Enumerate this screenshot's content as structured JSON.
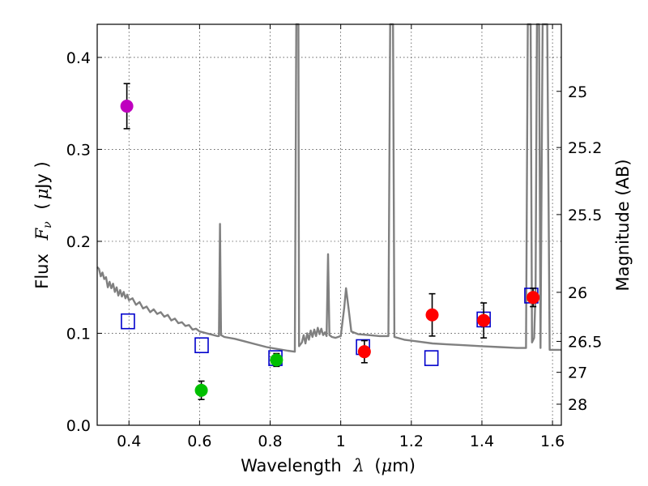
{
  "chart_data": {
    "type": "scatter",
    "xlabel": "Wavelength",
    "xlabel_symbol": "λ",
    "xlabel_unit_open": "(",
    "xlabel_unit_mu": "μ",
    "xlabel_unit_rest": "m)",
    "ylabel": "Flux",
    "ylabel_symbol": "F",
    "ylabel_subscript": "ν",
    "ylabel_unit_open": "(",
    "ylabel_unit_mu": "μ",
    "ylabel_unit_rest": "Jy )",
    "y2label": "Magnitude (AB)",
    "xlim": [
      0.31,
      1.625
    ],
    "ylim": [
      0.0,
      0.436
    ],
    "grid": true,
    "x_ticks": [
      {
        "value": 0.4,
        "label": "0.4"
      },
      {
        "value": 0.6,
        "label": "0.6"
      },
      {
        "value": 0.8,
        "label": "0.8"
      },
      {
        "value": 1.0,
        "label": "1"
      },
      {
        "value": 1.2,
        "label": "1.2"
      },
      {
        "value": 1.4,
        "label": "1.4"
      },
      {
        "value": 1.6,
        "label": "1.6"
      }
    ],
    "y_ticks": [
      {
        "value": 0.0,
        "label": "0.0"
      },
      {
        "value": 0.1,
        "label": "0.1"
      },
      {
        "value": 0.2,
        "label": "0.2"
      },
      {
        "value": 0.3,
        "label": "0.3"
      },
      {
        "value": 0.4,
        "label": "0.4"
      }
    ],
    "magnitude_ticks": [
      {
        "mag": 25,
        "label": "25"
      },
      {
        "mag": 25.2,
        "label": "25.2"
      },
      {
        "mag": 25.5,
        "label": "25.5"
      },
      {
        "mag": 26,
        "label": "26"
      },
      {
        "mag": 26.5,
        "label": "26.5"
      },
      {
        "mag": 27,
        "label": "27"
      },
      {
        "mag": 28,
        "label": "28"
      }
    ],
    "series": [
      {
        "name": "model_sed",
        "kind": "line",
        "color": "#808080",
        "points": [
          [
            0.31,
            0.172
          ],
          [
            0.315,
            0.17
          ],
          [
            0.32,
            0.162
          ],
          [
            0.325,
            0.166
          ],
          [
            0.33,
            0.159
          ],
          [
            0.335,
            0.161
          ],
          [
            0.34,
            0.15
          ],
          [
            0.345,
            0.156
          ],
          [
            0.35,
            0.149
          ],
          [
            0.355,
            0.154
          ],
          [
            0.36,
            0.145
          ],
          [
            0.365,
            0.15
          ],
          [
            0.37,
            0.141
          ],
          [
            0.375,
            0.147
          ],
          [
            0.38,
            0.14
          ],
          [
            0.385,
            0.145
          ],
          [
            0.39,
            0.138
          ],
          [
            0.395,
            0.142
          ],
          [
            0.4,
            0.136
          ],
          [
            0.41,
            0.138
          ],
          [
            0.42,
            0.131
          ],
          [
            0.43,
            0.134
          ],
          [
            0.44,
            0.127
          ],
          [
            0.45,
            0.129
          ],
          [
            0.46,
            0.123
          ],
          [
            0.47,
            0.126
          ],
          [
            0.48,
            0.121
          ],
          [
            0.49,
            0.123
          ],
          [
            0.5,
            0.118
          ],
          [
            0.51,
            0.12
          ],
          [
            0.52,
            0.114
          ],
          [
            0.53,
            0.116
          ],
          [
            0.54,
            0.111
          ],
          [
            0.55,
            0.112
          ],
          [
            0.56,
            0.108
          ],
          [
            0.57,
            0.109
          ],
          [
            0.58,
            0.104
          ],
          [
            0.59,
            0.105
          ],
          [
            0.6,
            0.102
          ],
          [
            0.61,
            0.101
          ],
          [
            0.62,
            0.1
          ],
          [
            0.63,
            0.099
          ],
          [
            0.64,
            0.098
          ],
          [
            0.65,
            0.097
          ],
          [
            0.655,
            0.097
          ],
          [
            0.658,
            0.219
          ],
          [
            0.661,
            0.098
          ],
          [
            0.67,
            0.096
          ],
          [
            0.7,
            0.094
          ],
          [
            0.73,
            0.091
          ],
          [
            0.76,
            0.088
          ],
          [
            0.79,
            0.085
          ],
          [
            0.82,
            0.083
          ],
          [
            0.85,
            0.081
          ],
          [
            0.87,
            0.08
          ],
          [
            0.874,
            0.436
          ],
          [
            0.88,
            0.436
          ],
          [
            0.882,
            0.086
          ],
          [
            0.89,
            0.09
          ],
          [
            0.895,
            0.098
          ],
          [
            0.9,
            0.089
          ],
          [
            0.905,
            0.1
          ],
          [
            0.91,
            0.093
          ],
          [
            0.915,
            0.103
          ],
          [
            0.92,
            0.096
          ],
          [
            0.925,
            0.104
          ],
          [
            0.93,
            0.097
          ],
          [
            0.935,
            0.106
          ],
          [
            0.94,
            0.099
          ],
          [
            0.945,
            0.105
          ],
          [
            0.95,
            0.098
          ],
          [
            0.955,
            0.101
          ],
          [
            0.96,
            0.097
          ],
          [
            0.964,
            0.186
          ],
          [
            0.968,
            0.098
          ],
          [
            0.975,
            0.096
          ],
          [
            0.985,
            0.095
          ],
          [
            1.0,
            0.097
          ],
          [
            1.01,
            0.128
          ],
          [
            1.015,
            0.149
          ],
          [
            1.022,
            0.128
          ],
          [
            1.03,
            0.102
          ],
          [
            1.05,
            0.099
          ],
          [
            1.08,
            0.098
          ],
          [
            1.11,
            0.097
          ],
          [
            1.135,
            0.097
          ],
          [
            1.14,
            0.436
          ],
          [
            1.148,
            0.436
          ],
          [
            1.152,
            0.096
          ],
          [
            1.18,
            0.093
          ],
          [
            1.22,
            0.091
          ],
          [
            1.26,
            0.089
          ],
          [
            1.3,
            0.088
          ],
          [
            1.35,
            0.087
          ],
          [
            1.4,
            0.086
          ],
          [
            1.45,
            0.085
          ],
          [
            1.5,
            0.084
          ],
          [
            1.525,
            0.084
          ],
          [
            1.53,
            0.436
          ],
          [
            1.538,
            0.436
          ],
          [
            1.542,
            0.09
          ],
          [
            1.548,
            0.095
          ],
          [
            1.552,
            0.145
          ],
          [
            1.556,
            0.436
          ],
          [
            1.562,
            0.436
          ],
          [
            1.566,
            0.084
          ],
          [
            1.572,
            0.436
          ],
          [
            1.585,
            0.436
          ],
          [
            1.592,
            0.082
          ],
          [
            1.6,
            0.082
          ],
          [
            1.625,
            0.082
          ]
        ]
      },
      {
        "name": "model_photometry",
        "kind": "square",
        "color": "#0000cc",
        "points": [
          [
            0.397,
            0.113
          ],
          [
            0.606,
            0.087
          ],
          [
            0.815,
            0.073
          ],
          [
            1.063,
            0.085
          ],
          [
            1.257,
            0.073
          ],
          [
            1.405,
            0.115
          ],
          [
            1.54,
            0.141
          ]
        ]
      },
      {
        "name": "observed_uv",
        "kind": "circle",
        "color": "#bf00bf",
        "points": [
          [
            0.394,
            0.347,
            0.0245
          ]
        ]
      },
      {
        "name": "observed_optical",
        "kind": "circle",
        "color": "#00bf00",
        "points": [
          [
            0.605,
            0.038,
            0.01
          ],
          [
            0.818,
            0.071,
            0.007
          ]
        ]
      },
      {
        "name": "observed_nir",
        "kind": "circle",
        "color": "#ff0000",
        "points": [
          [
            1.067,
            0.08,
            0.012
          ],
          [
            1.259,
            0.12,
            0.023
          ],
          [
            1.405,
            0.114,
            0.019
          ],
          [
            1.545,
            0.139,
            0.01
          ]
        ]
      }
    ]
  }
}
